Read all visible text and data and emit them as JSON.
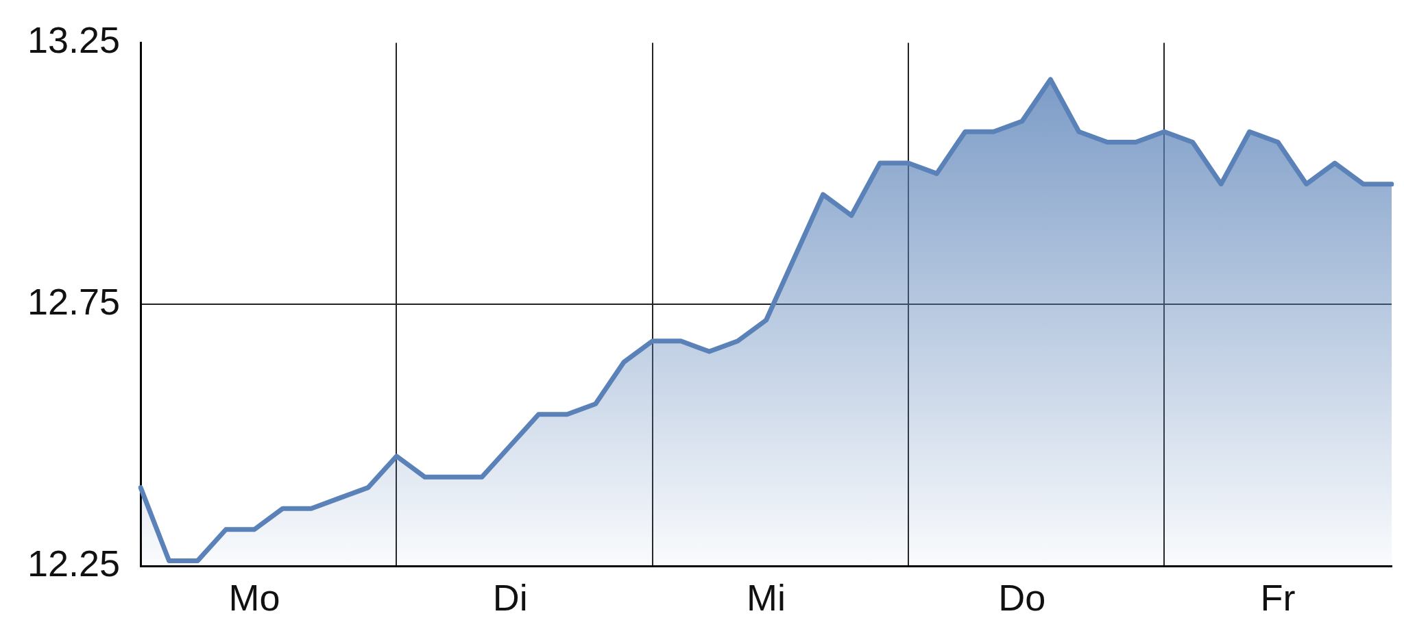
{
  "chart_data": {
    "type": "area",
    "color": "#5a82b8",
    "categories": [
      null,
      null,
      null,
      null,
      "Mo",
      null,
      null,
      null,
      null,
      null,
      null,
      null,
      null,
      "Di",
      null,
      null,
      null,
      null,
      null,
      null,
      null,
      null,
      "Mi",
      null,
      null,
      null,
      null,
      null,
      null,
      null,
      null,
      "Do",
      null,
      null,
      null,
      null,
      null,
      null,
      null,
      null,
      "Fr",
      null,
      null,
      null,
      null
    ],
    "values": [
      12.4,
      12.26,
      12.26,
      12.32,
      12.32,
      12.36,
      12.36,
      12.38,
      12.4,
      12.46,
      12.42,
      12.42,
      12.42,
      12.48,
      12.54,
      12.54,
      12.56,
      12.64,
      12.68,
      12.68,
      12.66,
      12.68,
      12.72,
      12.84,
      12.96,
      12.92,
      13.02,
      13.02,
      13.0,
      13.08,
      13.08,
      13.1,
      13.18,
      13.08,
      13.06,
      13.06,
      13.08,
      13.06,
      12.98,
      13.08,
      13.06,
      12.98,
      13.02,
      12.98,
      12.98
    ],
    "ylim": [
      12.25,
      13.25
    ],
    "yticks": [
      12.25,
      12.75,
      13.25
    ],
    "grid": true
  }
}
